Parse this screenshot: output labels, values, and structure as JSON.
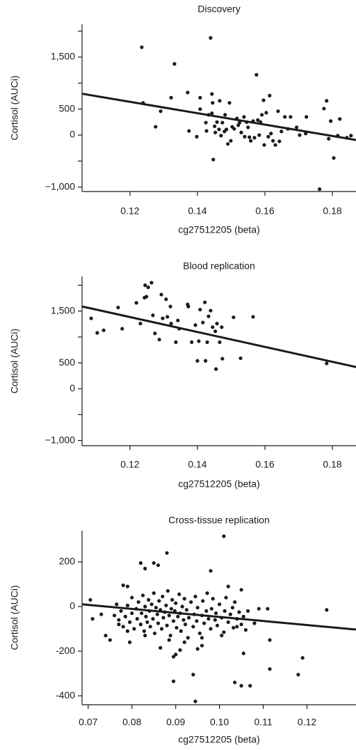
{
  "chart_data": [
    {
      "type": "scatter",
      "title": "Discovery",
      "x_label": "cg27512205 (beta)",
      "y_label": "Cortisol (AUCi)",
      "color": "#1a1a1a",
      "x": [
        0.1235,
        0.1239,
        0.1276,
        0.1291,
        0.1322,
        0.1332,
        0.1371,
        0.1375,
        0.1398,
        0.1408,
        0.1408,
        0.1425,
        0.1427,
        0.1433,
        0.1439,
        0.1443,
        0.1445,
        0.1443,
        0.1447,
        0.1451,
        0.1453,
        0.1458,
        0.1464,
        0.1466,
        0.147,
        0.1474,
        0.148,
        0.1482,
        0.1486,
        0.149,
        0.1495,
        0.1499,
        0.1503,
        0.1509,
        0.1517,
        0.1521,
        0.1525,
        0.153,
        0.1538,
        0.154,
        0.1546,
        0.155,
        0.1554,
        0.1558,
        0.1565,
        0.1569,
        0.1575,
        0.1579,
        0.1583,
        0.1587,
        0.1591,
        0.1596,
        0.1598,
        0.1604,
        0.161,
        0.1614,
        0.1618,
        0.1624,
        0.1631,
        0.1639,
        0.1643,
        0.1649,
        0.1659,
        0.1668,
        0.1676,
        0.1694,
        0.1703,
        0.1721,
        0.1723,
        0.1762,
        0.1775,
        0.1783,
        0.1789,
        0.1795,
        0.1804,
        0.1816,
        0.1822,
        0.1843,
        0.1855
      ],
      "values": [
        1690,
        620,
        160,
        460,
        720,
        1370,
        820,
        80,
        -30,
        720,
        500,
        240,
        80,
        390,
        1870,
        790,
        620,
        420,
        -470,
        170,
        50,
        250,
        110,
        660,
        -10,
        240,
        70,
        390,
        110,
        -170,
        620,
        -110,
        160,
        120,
        320,
        190,
        240,
        50,
        350,
        -30,
        250,
        150,
        -40,
        -110,
        270,
        -50,
        1160,
        290,
        0,
        250,
        390,
        670,
        -190,
        430,
        -30,
        760,
        30,
        -110,
        -190,
        460,
        -120,
        70,
        350,
        120,
        350,
        150,
        0,
        30,
        350,
        -1040,
        510,
        660,
        -70,
        270,
        -440,
        -10,
        310,
        -50,
        -10
      ],
      "trendline": {
        "x": [
          0.1058,
          0.187
        ],
        "values": [
          796,
          -94
        ]
      },
      "xlim": [
        0.1058,
        0.187
      ],
      "ylim": [
        -1085,
        2130
      ],
      "xticks": [
        0.12,
        0.14,
        0.16,
        0.18
      ],
      "yticks": [
        {
          "value": -1000,
          "label": "−1,000"
        },
        0,
        500,
        {
          "value": 1500,
          "label": "1,500"
        }
      ],
      "yticks_minor": [
        -500,
        1000,
        2000
      ]
    },
    {
      "type": "scatter",
      "title": "Blood replication",
      "x_label": "cg27512205 (beta)",
      "y_label": "Cortisol (AUCi)",
      "color": "#1a1a1a",
      "x": [
        0.1085,
        0.1103,
        0.1122,
        0.1165,
        0.1177,
        0.1219,
        0.1231,
        0.1243,
        0.1245,
        0.1249,
        0.1254,
        0.1264,
        0.1268,
        0.1274,
        0.1287,
        0.1293,
        0.1297,
        0.1307,
        0.1311,
        0.132,
        0.1322,
        0.1336,
        0.1342,
        0.1346,
        0.1371,
        0.1373,
        0.1383,
        0.1394,
        0.14,
        0.1404,
        0.1408,
        0.1416,
        0.1422,
        0.1424,
        0.1429,
        0.1433,
        0.1439,
        0.1445,
        0.1453,
        0.1455,
        0.1458,
        0.1466,
        0.1472,
        0.1474,
        0.1507,
        0.1528,
        0.1565,
        0.1783
      ],
      "values": [
        1360,
        1080,
        1130,
        1570,
        1160,
        1660,
        1260,
        1760,
        2000,
        1780,
        1960,
        2050,
        1420,
        1070,
        950,
        1820,
        1360,
        1730,
        1390,
        1590,
        1260,
        900,
        1320,
        1160,
        1630,
        1590,
        900,
        1230,
        540,
        920,
        1530,
        1280,
        1670,
        540,
        900,
        1400,
        1510,
        1190,
        1110,
        380,
        1260,
        900,
        1190,
        580,
        1380,
        590,
        1390,
        490
      ],
      "trendline": {
        "x": [
          0.1058,
          0.187
        ],
        "values": [
          1590,
          420
        ]
      },
      "xlim": [
        0.1058,
        0.187
      ],
      "ylim": [
        -1100,
        2170
      ],
      "xticks": [
        0.12,
        0.14,
        0.16,
        0.18
      ],
      "yticks": [
        {
          "value": -1000,
          "label": "−1,000"
        },
        0,
        500,
        {
          "value": 1500,
          "label": "1,500"
        }
      ],
      "yticks_minor": [
        -500,
        1000,
        2000
      ]
    },
    {
      "type": "scatter",
      "title": "Cross-tissue replication",
      "x_label": "cg27512205 (beta)",
      "y_label": "Cortisol (AUCi)",
      "color": "#1a1a1a",
      "x": [
        0.0705,
        0.071,
        0.073,
        0.074,
        0.075,
        0.077,
        0.078,
        0.079,
        0.0795,
        0.082,
        0.083,
        0.085,
        0.086,
        0.0865,
        0.088,
        0.0895,
        0.0895,
        0.09,
        0.091,
        0.094,
        0.0945,
        0.095,
        0.096,
        0.098,
        0.101,
        0.1035,
        0.105,
        0.1055,
        0.107,
        0.108,
        0.1115,
        0.1115,
        0.118,
        0.119,
        0.1245,
        0.109,
        0.111,
        0.105,
        0.102,
        0.104,
        0.106,
        0.076,
        0.0765,
        0.077,
        0.0775,
        0.078,
        0.0785,
        0.079,
        0.0795,
        0.08,
        0.08,
        0.0805,
        0.081,
        0.0812,
        0.0815,
        0.082,
        0.0822,
        0.0825,
        0.0828,
        0.083,
        0.0832,
        0.0835,
        0.0838,
        0.084,
        0.0842,
        0.0845,
        0.0848,
        0.085,
        0.0852,
        0.0855,
        0.0858,
        0.086,
        0.0862,
        0.0865,
        0.0868,
        0.087,
        0.0872,
        0.0875,
        0.0878,
        0.088,
        0.0882,
        0.0885,
        0.0888,
        0.089,
        0.0892,
        0.0895,
        0.0898,
        0.09,
        0.0902,
        0.0905,
        0.0908,
        0.091,
        0.0912,
        0.0915,
        0.0918,
        0.092,
        0.0922,
        0.0925,
        0.0928,
        0.093,
        0.0935,
        0.094,
        0.0942,
        0.0945,
        0.0948,
        0.095,
        0.0955,
        0.096,
        0.0962,
        0.0965,
        0.097,
        0.0972,
        0.0975,
        0.098,
        0.0982,
        0.0985,
        0.099,
        0.0992,
        0.0995,
        0.1,
        0.1005,
        0.101,
        0.1012,
        0.1015,
        0.102,
        0.1025,
        0.103,
        0.1032,
        0.1035,
        0.104,
        0.1045,
        0.105,
        0.1055,
        0.1065,
        0.083,
        0.079,
        0.092,
        0.096,
        0.0885,
        0.1005
      ],
      "values": [
        30,
        -55,
        -35,
        -130,
        -150,
        -80,
        95,
        90,
        -160,
        195,
        170,
        195,
        185,
        -185,
        240,
        -335,
        -225,
        -215,
        -195,
        -305,
        -425,
        -190,
        -140,
        160,
        315,
        -340,
        -355,
        -210,
        -355,
        -75,
        -280,
        -150,
        -305,
        -230,
        -15,
        -10,
        -10,
        75,
        90,
        -90,
        -105,
        -40,
        10,
        -60,
        -20,
        -90,
        -45,
        5,
        -70,
        -30,
        40,
        -100,
        -10,
        -55,
        20,
        -80,
        -30,
        50,
        -110,
        0,
        -45,
        -70,
        30,
        -20,
        -90,
        10,
        -55,
        60,
        -120,
        -5,
        -35,
        -75,
        25,
        -15,
        -100,
        45,
        -50,
        -25,
        5,
        -85,
        70,
        -40,
        -130,
        -10,
        30,
        -65,
        -20,
        15,
        -95,
        -45,
        55,
        -30,
        -110,
        0,
        -60,
        35,
        -80,
        -15,
        -140,
        -50,
        20,
        -90,
        -35,
        45,
        -65,
        -5,
        -120,
        -40,
        25,
        -75,
        -20,
        60,
        -55,
        -100,
        -10,
        35,
        -60,
        -30,
        -85,
        10,
        -50,
        -115,
        -20,
        40,
        -70,
        -35,
        -5,
        -95,
        20,
        -55,
        -25,
        -80,
        -45,
        -20,
        -130,
        -110,
        -160,
        -175,
        -150,
        -130
      ],
      "trendline": {
        "x": [
          0.0686,
          0.1312
        ],
        "values": [
          10,
          -103
        ]
      },
      "xlim": [
        0.0686,
        0.1312
      ],
      "ylim": [
        -440,
        340
      ],
      "xticks": [
        0.07,
        0.08,
        0.09,
        {
          "value": 0.1,
          "label": "0.10"
        },
        0.11,
        0.12
      ],
      "yticks": [
        -400,
        -200,
        0,
        200
      ]
    }
  ]
}
